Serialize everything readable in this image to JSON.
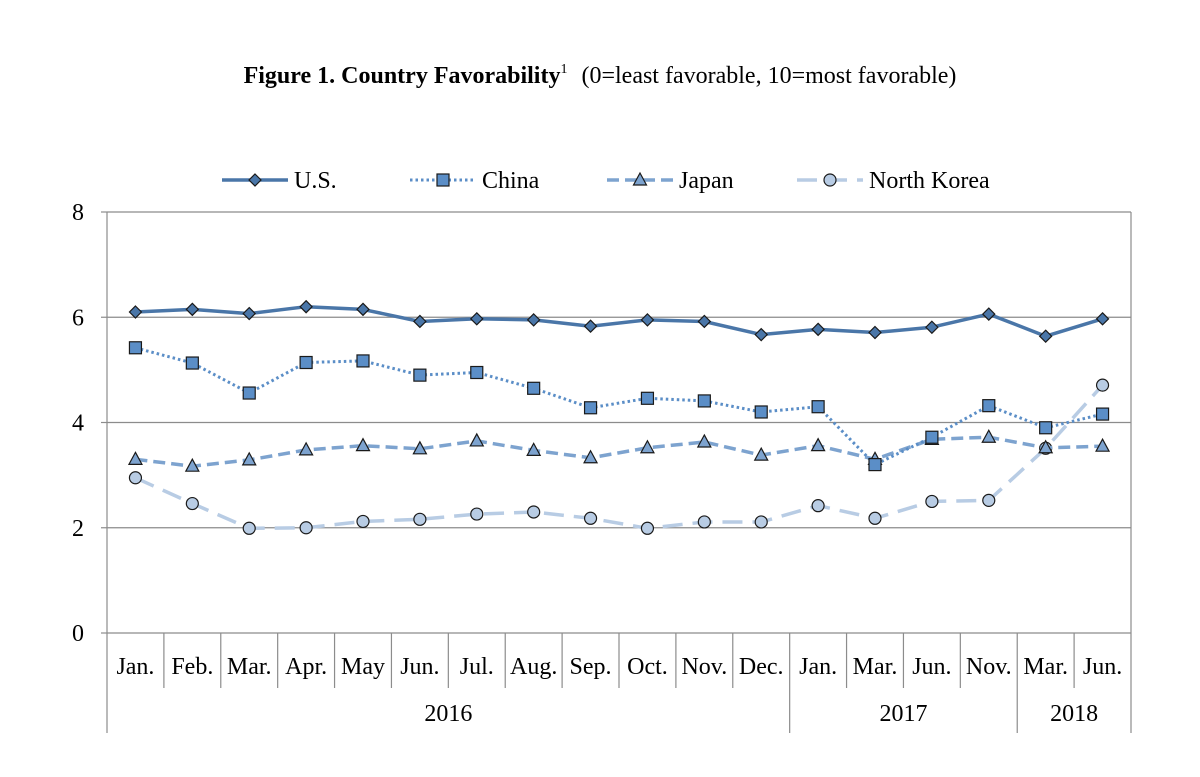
{
  "chart_data": {
    "type": "line",
    "title": {
      "main": "Figure 1. Country Favorability",
      "footnote": "1",
      "subtitle": "(0=least favorable, 10=most favorable)"
    },
    "xlabel": "",
    "ylabel": "",
    "ylim": [
      0,
      8
    ],
    "yticks": [
      "0",
      "2",
      "4",
      "6",
      "8"
    ],
    "grid": true,
    "legend_position": "top",
    "categories": [
      "Jan.",
      "Feb.",
      "Mar.",
      "Apr.",
      "May",
      "Jun.",
      "Jul.",
      "Aug.",
      "Sep.",
      "Oct.",
      "Nov.",
      "Dec.",
      "Jan.",
      "Mar.",
      "Jun.",
      "Nov.",
      "Mar.",
      "Jun."
    ],
    "year_groups": [
      {
        "label": "2016",
        "count": 12
      },
      {
        "label": "2017",
        "count": 4
      },
      {
        "label": "2018",
        "count": 2
      }
    ],
    "series": [
      {
        "name": "U.S.",
        "marker": "diamond",
        "line_style": "solid",
        "color": "#4a76a8",
        "values": [
          6.1,
          6.15,
          6.07,
          6.2,
          6.15,
          5.92,
          5.97,
          5.95,
          5.83,
          5.95,
          5.92,
          5.67,
          5.77,
          5.71,
          5.81,
          6.06,
          5.64,
          5.97
        ]
      },
      {
        "name": "China",
        "marker": "square",
        "line_style": "dotted",
        "color": "#5b8ec7",
        "values": [
          5.42,
          5.13,
          4.56,
          5.14,
          5.17,
          4.9,
          4.95,
          4.65,
          4.28,
          4.46,
          4.41,
          4.2,
          4.3,
          3.2,
          3.72,
          4.32,
          3.9,
          4.16
        ]
      },
      {
        "name": "Japan",
        "marker": "triangle",
        "line_style": "dashed",
        "color": "#7da3cf",
        "values": [
          3.3,
          3.17,
          3.29,
          3.48,
          3.56,
          3.5,
          3.65,
          3.47,
          3.33,
          3.52,
          3.63,
          3.38,
          3.56,
          3.3,
          3.68,
          3.72,
          3.52,
          3.55
        ]
      },
      {
        "name": "North Korea",
        "marker": "circle",
        "line_style": "long-dashed",
        "color": "#b8cce4",
        "values": [
          2.95,
          2.46,
          1.99,
          2.0,
          2.12,
          2.16,
          2.26,
          2.3,
          2.18,
          1.99,
          2.11,
          2.11,
          2.42,
          2.18,
          2.5,
          2.52,
          3.51,
          4.71
        ]
      }
    ]
  }
}
